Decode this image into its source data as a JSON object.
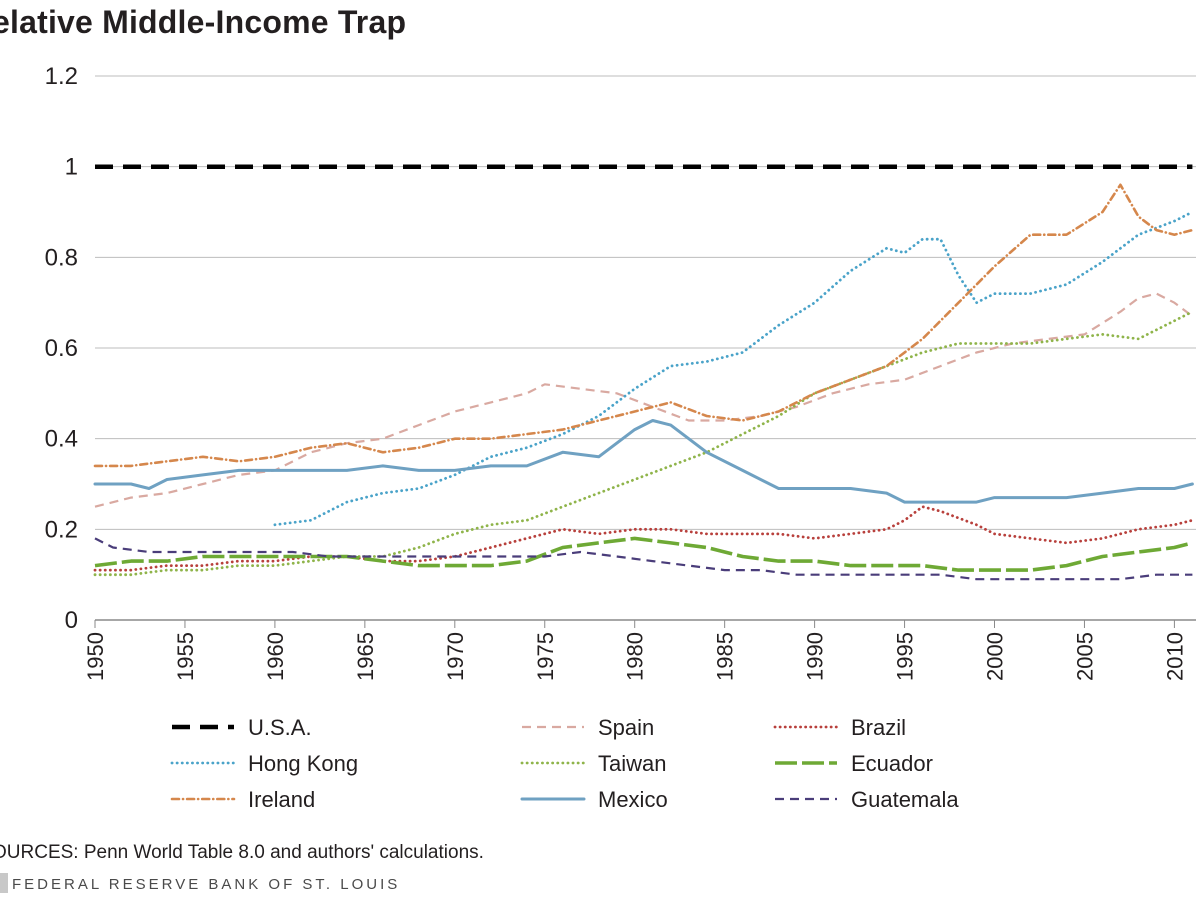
{
  "title": "elative Middle-Income Trap",
  "source_note": "OURCES: Penn World Table 8.0 and authors' calculations.",
  "credit": "FEDERAL RESERVE BANK OF ST. LOUIS",
  "chart_data": {
    "type": "line",
    "title": "elative Middle-Income Trap",
    "xlabel": "",
    "ylabel": "",
    "xlim": [
      1950,
      2011
    ],
    "ylim": [
      0,
      1.2
    ],
    "x_ticks": [
      1950,
      1955,
      1960,
      1965,
      1970,
      1975,
      1980,
      1985,
      1990,
      1995,
      2000,
      2005,
      2010
    ],
    "y_ticks": [
      "0",
      "0.2",
      "0.4",
      "0.6",
      "0.8",
      "1",
      "1.2"
    ],
    "grid": "horizontal",
    "legend_position": "bottom",
    "series": [
      {
        "name": "U.S.A.",
        "color": "#000000",
        "style": "dash-heavy",
        "points": [
          [
            1950,
            1.0
          ],
          [
            2011,
            1.0
          ]
        ]
      },
      {
        "name": "Spain",
        "color": "#d9a9a1",
        "style": "dash",
        "points": [
          [
            1950,
            0.25
          ],
          [
            1952,
            0.27
          ],
          [
            1954,
            0.28
          ],
          [
            1956,
            0.3
          ],
          [
            1958,
            0.32
          ],
          [
            1960,
            0.33
          ],
          [
            1962,
            0.37
          ],
          [
            1964,
            0.39
          ],
          [
            1966,
            0.4
          ],
          [
            1968,
            0.43
          ],
          [
            1970,
            0.46
          ],
          [
            1972,
            0.48
          ],
          [
            1974,
            0.5
          ],
          [
            1975,
            0.52
          ],
          [
            1977,
            0.51
          ],
          [
            1979,
            0.5
          ],
          [
            1981,
            0.47
          ],
          [
            1983,
            0.44
          ],
          [
            1985,
            0.44
          ],
          [
            1987,
            0.45
          ],
          [
            1989,
            0.47
          ],
          [
            1991,
            0.5
          ],
          [
            1993,
            0.52
          ],
          [
            1995,
            0.53
          ],
          [
            1997,
            0.56
          ],
          [
            1999,
            0.59
          ],
          [
            2001,
            0.61
          ],
          [
            2003,
            0.62
          ],
          [
            2005,
            0.63
          ],
          [
            2007,
            0.68
          ],
          [
            2008,
            0.71
          ],
          [
            2009,
            0.72
          ],
          [
            2010,
            0.7
          ],
          [
            2011,
            0.67
          ]
        ]
      },
      {
        "name": "Brazil",
        "color": "#b8403c",
        "style": "dot",
        "points": [
          [
            1950,
            0.11
          ],
          [
            1952,
            0.11
          ],
          [
            1954,
            0.12
          ],
          [
            1956,
            0.12
          ],
          [
            1958,
            0.13
          ],
          [
            1960,
            0.13
          ],
          [
            1962,
            0.14
          ],
          [
            1964,
            0.14
          ],
          [
            1966,
            0.13
          ],
          [
            1968,
            0.13
          ],
          [
            1970,
            0.14
          ],
          [
            1972,
            0.16
          ],
          [
            1974,
            0.18
          ],
          [
            1976,
            0.2
          ],
          [
            1978,
            0.19
          ],
          [
            1980,
            0.2
          ],
          [
            1982,
            0.2
          ],
          [
            1984,
            0.19
          ],
          [
            1986,
            0.19
          ],
          [
            1988,
            0.19
          ],
          [
            1990,
            0.18
          ],
          [
            1992,
            0.19
          ],
          [
            1994,
            0.2
          ],
          [
            1995,
            0.22
          ],
          [
            1996,
            0.25
          ],
          [
            1997,
            0.24
          ],
          [
            1999,
            0.21
          ],
          [
            2000,
            0.19
          ],
          [
            2002,
            0.18
          ],
          [
            2004,
            0.17
          ],
          [
            2006,
            0.18
          ],
          [
            2008,
            0.2
          ],
          [
            2010,
            0.21
          ],
          [
            2011,
            0.22
          ]
        ]
      },
      {
        "name": "Hong Kong",
        "color": "#4aa3c9",
        "style": "dot",
        "points": [
          [
            1960,
            0.21
          ],
          [
            1962,
            0.22
          ],
          [
            1964,
            0.26
          ],
          [
            1966,
            0.28
          ],
          [
            1968,
            0.29
          ],
          [
            1970,
            0.32
          ],
          [
            1972,
            0.36
          ],
          [
            1974,
            0.38
          ],
          [
            1976,
            0.41
          ],
          [
            1978,
            0.45
          ],
          [
            1980,
            0.51
          ],
          [
            1982,
            0.56
          ],
          [
            1984,
            0.57
          ],
          [
            1986,
            0.59
          ],
          [
            1988,
            0.65
          ],
          [
            1990,
            0.7
          ],
          [
            1992,
            0.77
          ],
          [
            1994,
            0.82
          ],
          [
            1995,
            0.81
          ],
          [
            1996,
            0.84
          ],
          [
            1997,
            0.84
          ],
          [
            1998,
            0.76
          ],
          [
            1999,
            0.7
          ],
          [
            2000,
            0.72
          ],
          [
            2002,
            0.72
          ],
          [
            2004,
            0.74
          ],
          [
            2006,
            0.79
          ],
          [
            2008,
            0.85
          ],
          [
            2010,
            0.88
          ],
          [
            2011,
            0.9
          ]
        ]
      },
      {
        "name": "Taiwan",
        "color": "#8fb44a",
        "style": "dot",
        "points": [
          [
            1950,
            0.1
          ],
          [
            1952,
            0.1
          ],
          [
            1954,
            0.11
          ],
          [
            1956,
            0.11
          ],
          [
            1958,
            0.12
          ],
          [
            1960,
            0.12
          ],
          [
            1962,
            0.13
          ],
          [
            1964,
            0.14
          ],
          [
            1966,
            0.14
          ],
          [
            1968,
            0.16
          ],
          [
            1970,
            0.19
          ],
          [
            1972,
            0.21
          ],
          [
            1974,
            0.22
          ],
          [
            1976,
            0.25
          ],
          [
            1978,
            0.28
          ],
          [
            1980,
            0.31
          ],
          [
            1982,
            0.34
          ],
          [
            1984,
            0.37
          ],
          [
            1986,
            0.41
          ],
          [
            1988,
            0.45
          ],
          [
            1990,
            0.5
          ],
          [
            1992,
            0.53
          ],
          [
            1994,
            0.56
          ],
          [
            1996,
            0.59
          ],
          [
            1998,
            0.61
          ],
          [
            2000,
            0.61
          ],
          [
            2002,
            0.61
          ],
          [
            2004,
            0.62
          ],
          [
            2006,
            0.63
          ],
          [
            2008,
            0.62
          ],
          [
            2010,
            0.66
          ],
          [
            2011,
            0.68
          ]
        ]
      },
      {
        "name": "Ecuador",
        "color": "#6ea935",
        "style": "longdash",
        "points": [
          [
            1950,
            0.12
          ],
          [
            1952,
            0.13
          ],
          [
            1954,
            0.13
          ],
          [
            1956,
            0.14
          ],
          [
            1958,
            0.14
          ],
          [
            1960,
            0.14
          ],
          [
            1962,
            0.14
          ],
          [
            1964,
            0.14
          ],
          [
            1966,
            0.13
          ],
          [
            1968,
            0.12
          ],
          [
            1970,
            0.12
          ],
          [
            1972,
            0.12
          ],
          [
            1974,
            0.13
          ],
          [
            1976,
            0.16
          ],
          [
            1978,
            0.17
          ],
          [
            1980,
            0.18
          ],
          [
            1982,
            0.17
          ],
          [
            1984,
            0.16
          ],
          [
            1986,
            0.14
          ],
          [
            1988,
            0.13
          ],
          [
            1990,
            0.13
          ],
          [
            1992,
            0.12
          ],
          [
            1994,
            0.12
          ],
          [
            1996,
            0.12
          ],
          [
            1998,
            0.11
          ],
          [
            2000,
            0.11
          ],
          [
            2002,
            0.11
          ],
          [
            2004,
            0.12
          ],
          [
            2006,
            0.14
          ],
          [
            2008,
            0.15
          ],
          [
            2010,
            0.16
          ],
          [
            2011,
            0.17
          ]
        ]
      },
      {
        "name": "Ireland",
        "color": "#d5874c",
        "style": "dashdot",
        "points": [
          [
            1950,
            0.34
          ],
          [
            1952,
            0.34
          ],
          [
            1954,
            0.35
          ],
          [
            1956,
            0.36
          ],
          [
            1958,
            0.35
          ],
          [
            1960,
            0.36
          ],
          [
            1962,
            0.38
          ],
          [
            1964,
            0.39
          ],
          [
            1966,
            0.37
          ],
          [
            1968,
            0.38
          ],
          [
            1970,
            0.4
          ],
          [
            1972,
            0.4
          ],
          [
            1974,
            0.41
          ],
          [
            1976,
            0.42
          ],
          [
            1978,
            0.44
          ],
          [
            1980,
            0.46
          ],
          [
            1982,
            0.48
          ],
          [
            1984,
            0.45
          ],
          [
            1986,
            0.44
          ],
          [
            1988,
            0.46
          ],
          [
            1990,
            0.5
          ],
          [
            1992,
            0.53
          ],
          [
            1994,
            0.56
          ],
          [
            1996,
            0.62
          ],
          [
            1998,
            0.7
          ],
          [
            2000,
            0.78
          ],
          [
            2002,
            0.85
          ],
          [
            2004,
            0.85
          ],
          [
            2006,
            0.9
          ],
          [
            2007,
            0.96
          ],
          [
            2008,
            0.89
          ],
          [
            2009,
            0.86
          ],
          [
            2010,
            0.85
          ],
          [
            2011,
            0.86
          ]
        ]
      },
      {
        "name": "Mexico",
        "color": "#6fa1c2",
        "style": "solid",
        "points": [
          [
            1950,
            0.3
          ],
          [
            1952,
            0.3
          ],
          [
            1953,
            0.29
          ],
          [
            1954,
            0.31
          ],
          [
            1956,
            0.32
          ],
          [
            1958,
            0.33
          ],
          [
            1960,
            0.33
          ],
          [
            1962,
            0.33
          ],
          [
            1964,
            0.33
          ],
          [
            1966,
            0.34
          ],
          [
            1968,
            0.33
          ],
          [
            1970,
            0.33
          ],
          [
            1972,
            0.34
          ],
          [
            1974,
            0.34
          ],
          [
            1976,
            0.37
          ],
          [
            1978,
            0.36
          ],
          [
            1980,
            0.42
          ],
          [
            1981,
            0.44
          ],
          [
            1982,
            0.43
          ],
          [
            1984,
            0.37
          ],
          [
            1986,
            0.33
          ],
          [
            1988,
            0.29
          ],
          [
            1990,
            0.29
          ],
          [
            1992,
            0.29
          ],
          [
            1994,
            0.28
          ],
          [
            1995,
            0.26
          ],
          [
            1997,
            0.26
          ],
          [
            1999,
            0.26
          ],
          [
            2000,
            0.27
          ],
          [
            2002,
            0.27
          ],
          [
            2004,
            0.27
          ],
          [
            2006,
            0.28
          ],
          [
            2008,
            0.29
          ],
          [
            2010,
            0.29
          ],
          [
            2011,
            0.3
          ]
        ]
      },
      {
        "name": "Guatemala",
        "color": "#4a3d7a",
        "style": "dash",
        "points": [
          [
            1950,
            0.18
          ],
          [
            1951,
            0.16
          ],
          [
            1953,
            0.15
          ],
          [
            1955,
            0.15
          ],
          [
            1957,
            0.15
          ],
          [
            1959,
            0.15
          ],
          [
            1961,
            0.15
          ],
          [
            1963,
            0.14
          ],
          [
            1965,
            0.14
          ],
          [
            1967,
            0.14
          ],
          [
            1969,
            0.14
          ],
          [
            1971,
            0.14
          ],
          [
            1973,
            0.14
          ],
          [
            1975,
            0.14
          ],
          [
            1977,
            0.15
          ],
          [
            1979,
            0.14
          ],
          [
            1981,
            0.13
          ],
          [
            1983,
            0.12
          ],
          [
            1985,
            0.11
          ],
          [
            1987,
            0.11
          ],
          [
            1989,
            0.1
          ],
          [
            1991,
            0.1
          ],
          [
            1993,
            0.1
          ],
          [
            1995,
            0.1
          ],
          [
            1997,
            0.1
          ],
          [
            1999,
            0.09
          ],
          [
            2001,
            0.09
          ],
          [
            2003,
            0.09
          ],
          [
            2005,
            0.09
          ],
          [
            2007,
            0.09
          ],
          [
            2009,
            0.1
          ],
          [
            2011,
            0.1
          ]
        ]
      }
    ]
  }
}
